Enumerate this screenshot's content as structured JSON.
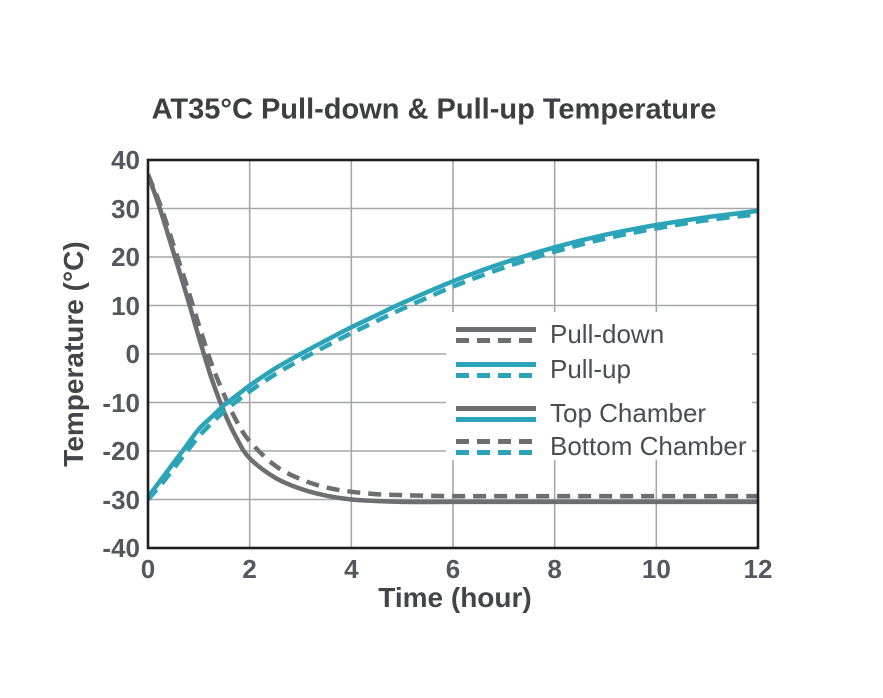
{
  "title": "AT35°C Pull-down & Pull-up Temperature",
  "chart_data": {
    "type": "line",
    "title": "AT35°C Pull-down & Pull-up Temperature",
    "xlabel": "Time (hour)",
    "ylabel": "Temperature (°C)",
    "xlim": [
      0,
      12
    ],
    "ylim": [
      -40,
      40
    ],
    "grid": true,
    "legend_position": "inside center-right",
    "x_ticks": [
      0,
      2,
      4,
      6,
      8,
      10,
      12
    ],
    "x_tick_labels": [
      "0",
      "2",
      "4",
      "6",
      "8",
      "10",
      "12"
    ],
    "y_ticks": [
      40,
      30,
      20,
      10,
      0,
      -10,
      -20,
      -30,
      -40
    ],
    "y_tick_labels": [
      "40",
      "30",
      "20",
      "10",
      "0",
      "-10",
      "-20",
      "-30",
      "-40"
    ],
    "x": [
      0,
      0.25,
      0.5,
      0.75,
      1,
      1.25,
      1.5,
      1.75,
      2,
      2.5,
      3,
      3.5,
      4,
      4.5,
      5,
      6,
      7,
      8,
      9,
      10,
      11,
      12
    ],
    "series": [
      {
        "name": "Pull-down Top Chamber",
        "color_key": "gray",
        "style": "solid",
        "values": [
          37,
          29.5,
          21,
          12.5,
          3.5,
          -5,
          -12,
          -17.5,
          -21.5,
          -25.5,
          -27.8,
          -29.2,
          -30,
          -30.3,
          -30.5,
          -30.5,
          -30.5,
          -30.5,
          -30.5,
          -30.5,
          -30.5,
          -30.5
        ]
      },
      {
        "name": "Pull-down Bottom Chamber",
        "color_key": "gray",
        "style": "dashed",
        "values": [
          37,
          30.5,
          22.5,
          14.5,
          6,
          -2,
          -8.5,
          -14,
          -18,
          -23,
          -25.8,
          -27.5,
          -28.4,
          -28.9,
          -29.1,
          -29.3,
          -29.3,
          -29.3,
          -29.3,
          -29.3,
          -29.3,
          -29.3
        ]
      },
      {
        "name": "Pull-up Top Chamber",
        "color_key": "teal",
        "style": "solid",
        "values": [
          -29.5,
          -26,
          -22.5,
          -19,
          -15.5,
          -13,
          -10.5,
          -8.5,
          -6.5,
          -3,
          0,
          2.8,
          5.5,
          8,
          10.5,
          15,
          18.8,
          22,
          24.6,
          26.6,
          28.2,
          29.5
        ]
      },
      {
        "name": "Pull-up Bottom Chamber",
        "color_key": "teal",
        "style": "dashed",
        "values": [
          -30,
          -27,
          -23.7,
          -20.3,
          -17,
          -14.3,
          -11.8,
          -9.7,
          -7.7,
          -4.2,
          -1.2,
          1.6,
          4.3,
          6.8,
          9.3,
          13.9,
          17.8,
          21.1,
          23.8,
          25.9,
          27.6,
          28.8
        ]
      }
    ],
    "legend": {
      "entries": [
        {
          "label": "Pull-down",
          "swatch": [
            "gray-solid",
            "gray-dashed"
          ]
        },
        {
          "label": "Pull-up",
          "swatch": [
            "teal-solid",
            "teal-dashed"
          ]
        },
        {
          "label": "Top Chamber",
          "swatch": [
            "gray-solid",
            "teal-solid"
          ]
        },
        {
          "label": "Bottom Chamber",
          "swatch": [
            "gray-dashed",
            "teal-dashed"
          ]
        }
      ]
    },
    "colors": {
      "gray": "#6d6e71",
      "teal": "#2ba4b8",
      "grid": "#a6a7ab",
      "axis_border": "#1f1f21",
      "title_text": "#3d3e42",
      "tick_text": "#55575e",
      "legend_text": "#4b4d55"
    }
  }
}
